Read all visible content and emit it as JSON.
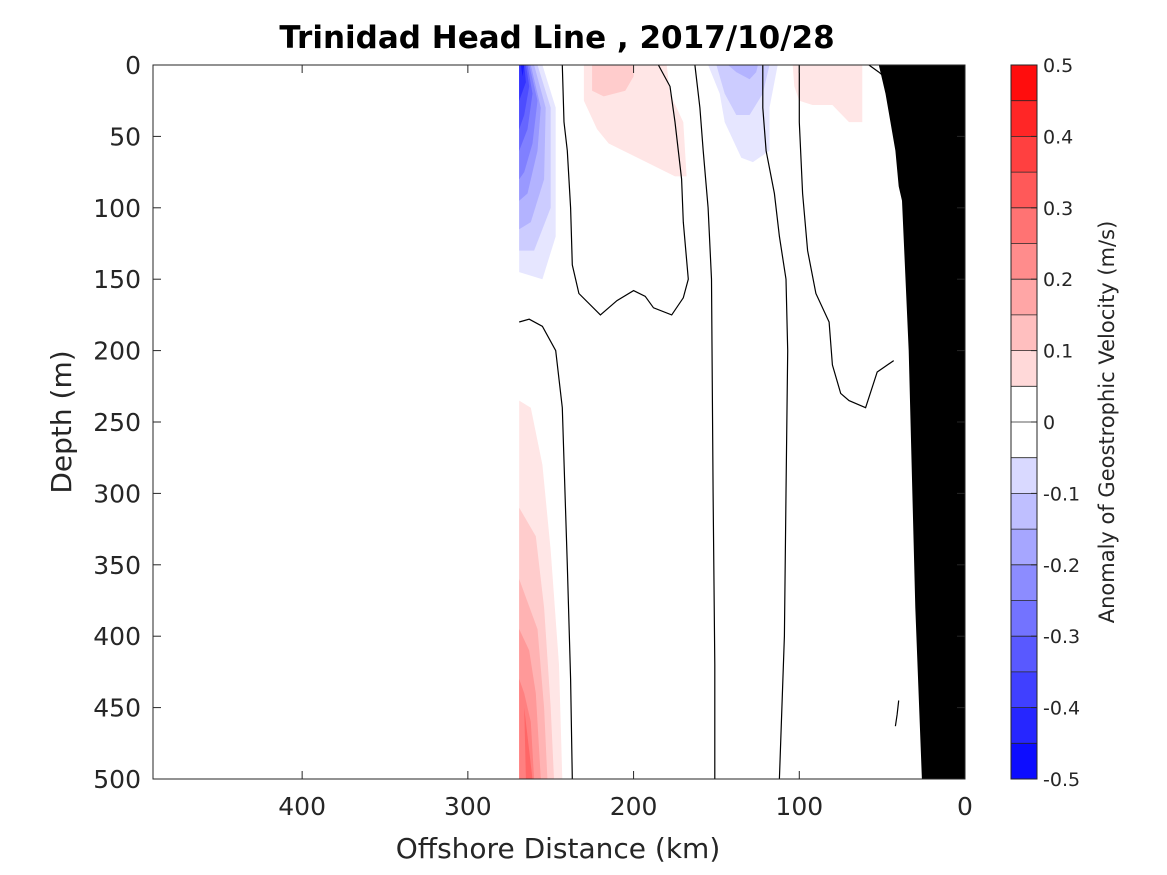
{
  "chart_data": {
    "type": "heatmap",
    "title": "Trinidad Head Line , 2017/10/28",
    "xlabel": "Offshore Distance (km)",
    "ylabel": "Depth (m)",
    "xlim": [
      490,
      0
    ],
    "ylim": [
      0,
      500
    ],
    "x_reversed": true,
    "y_reversed": true,
    "x_ticks": [
      400,
      300,
      200,
      100,
      0
    ],
    "x_tick_labels": [
      "400",
      "300",
      "200",
      "100",
      "0"
    ],
    "y_ticks": [
      0,
      50,
      100,
      150,
      200,
      250,
      300,
      350,
      400,
      450,
      500
    ],
    "y_tick_labels": [
      "0",
      "50",
      "100",
      "150",
      "200",
      "250",
      "300",
      "350",
      "400",
      "450",
      "500"
    ],
    "grid": false,
    "colorbar": {
      "label": "Anomaly of Geostrophic Velocity (m/s)",
      "range": [
        -0.5,
        0.5
      ],
      "levels": [
        -0.5,
        -0.45,
        -0.4,
        -0.35,
        -0.3,
        -0.25,
        -0.2,
        -0.15,
        -0.1,
        -0.05,
        0,
        0.05,
        0.1,
        0.15,
        0.2,
        0.25,
        0.3,
        0.35,
        0.4,
        0.45,
        0.5
      ],
      "tick_values": [
        0.5,
        0.4,
        0.3,
        0.2,
        0.1,
        0,
        -0.1,
        -0.2,
        -0.3,
        -0.4,
        -0.5
      ],
      "tick_labels": [
        "0.5",
        "0.4",
        "0.3",
        "0.2",
        "0.1",
        "0",
        "-0.1",
        "-0.2",
        "-0.3",
        "-0.4",
        "-0.5"
      ],
      "negative_color": "#0000ff",
      "positive_color": "#ff0000",
      "neutral_color": "#ffffff"
    },
    "bottom_color": "#000000",
    "bottom_profile": [
      [
        0,
        0
      ],
      [
        0,
        500
      ],
      [
        26,
        500
      ],
      [
        30,
        380
      ],
      [
        34,
        200
      ],
      [
        38,
        95
      ],
      [
        40,
        85
      ],
      [
        42,
        60
      ],
      [
        48,
        20
      ],
      [
        52,
        0
      ]
    ],
    "filled_regions": [
      {
        "value": -0.05,
        "points": [
          [
            269,
            0
          ],
          [
            255,
            0
          ],
          [
            247,
            30
          ],
          [
            247,
            120
          ],
          [
            255,
            150
          ],
          [
            269,
            145
          ]
        ]
      },
      {
        "value": -0.1,
        "points": [
          [
            269,
            0
          ],
          [
            258,
            0
          ],
          [
            250,
            30
          ],
          [
            250,
            100
          ],
          [
            260,
            130
          ],
          [
            269,
            130
          ]
        ]
      },
      {
        "value": -0.15,
        "points": [
          [
            269,
            0
          ],
          [
            260,
            0
          ],
          [
            253,
            30
          ],
          [
            254,
            80
          ],
          [
            262,
            110
          ],
          [
            269,
            115
          ]
        ]
      },
      {
        "value": -0.2,
        "points": [
          [
            269,
            0
          ],
          [
            262,
            0
          ],
          [
            256,
            30
          ],
          [
            258,
            60
          ],
          [
            264,
            90
          ],
          [
            269,
            95
          ]
        ]
      },
      {
        "value": -0.25,
        "points": [
          [
            269,
            0
          ],
          [
            263,
            0
          ],
          [
            258,
            25
          ],
          [
            261,
            55
          ],
          [
            266,
            75
          ],
          [
            269,
            80
          ]
        ]
      },
      {
        "value": -0.3,
        "points": [
          [
            269,
            0
          ],
          [
            264,
            0
          ],
          [
            261,
            20
          ],
          [
            264,
            45
          ],
          [
            269,
            60
          ]
        ]
      },
      {
        "value": -0.35,
        "points": [
          [
            269,
            0
          ],
          [
            265,
            0
          ],
          [
            263,
            15
          ],
          [
            266,
            35
          ],
          [
            269,
            45
          ]
        ]
      },
      {
        "value": -0.4,
        "points": [
          [
            269,
            0
          ],
          [
            266,
            0
          ],
          [
            265,
            12
          ],
          [
            269,
            25
          ]
        ]
      },
      {
        "value": -0.45,
        "points": [
          [
            268,
            0
          ],
          [
            266,
            0
          ],
          [
            267,
            8
          ]
        ]
      },
      {
        "value": 0.05,
        "points": [
          [
            230,
            0
          ],
          [
            230,
            25
          ],
          [
            222,
            45
          ],
          [
            215,
            55
          ],
          [
            175,
            78
          ],
          [
            168,
            78
          ],
          [
            170,
            40
          ],
          [
            178,
            20
          ],
          [
            180,
            0
          ]
        ]
      },
      {
        "value": 0.1,
        "points": [
          [
            225,
            0
          ],
          [
            225,
            18
          ],
          [
            218,
            22
          ],
          [
            205,
            18
          ],
          [
            200,
            8
          ],
          [
            200,
            0
          ]
        ]
      },
      {
        "value": -0.05,
        "points": [
          [
            155,
            0
          ],
          [
            148,
            20
          ],
          [
            145,
            40
          ],
          [
            135,
            65
          ],
          [
            128,
            68
          ],
          [
            118,
            60
          ],
          [
            118,
            30
          ],
          [
            113,
            0
          ]
        ]
      },
      {
        "value": -0.1,
        "points": [
          [
            150,
            0
          ],
          [
            145,
            20
          ],
          [
            138,
            35
          ],
          [
            130,
            35
          ],
          [
            122,
            20
          ],
          [
            118,
            0
          ]
        ]
      },
      {
        "value": -0.15,
        "points": [
          [
            143,
            0
          ],
          [
            138,
            5
          ],
          [
            130,
            10
          ],
          [
            126,
            5
          ],
          [
            125,
            0
          ]
        ]
      },
      {
        "value": 0.05,
        "points": [
          [
            104,
            0
          ],
          [
            103,
            15
          ],
          [
            100,
            25
          ],
          [
            92,
            28
          ],
          [
            80,
            28
          ],
          [
            70,
            40
          ],
          [
            62,
            40
          ],
          [
            62,
            0
          ]
        ]
      },
      {
        "value": 0.05,
        "points": [
          [
            269,
            235
          ],
          [
            269,
            500
          ],
          [
            243,
            500
          ],
          [
            245,
            420
          ],
          [
            250,
            340
          ],
          [
            255,
            280
          ],
          [
            262,
            240
          ]
        ]
      },
      {
        "value": 0.1,
        "points": [
          [
            269,
            310
          ],
          [
            269,
            500
          ],
          [
            248,
            500
          ],
          [
            250,
            450
          ],
          [
            254,
            380
          ],
          [
            259,
            330
          ]
        ]
      },
      {
        "value": 0.15,
        "points": [
          [
            269,
            360
          ],
          [
            269,
            500
          ],
          [
            252,
            500
          ],
          [
            254,
            450
          ],
          [
            258,
            395
          ]
        ]
      },
      {
        "value": 0.2,
        "points": [
          [
            269,
            395
          ],
          [
            269,
            500
          ],
          [
            256,
            500
          ],
          [
            259,
            440
          ],
          [
            263,
            410
          ]
        ]
      },
      {
        "value": 0.25,
        "points": [
          [
            269,
            430
          ],
          [
            269,
            500
          ],
          [
            260,
            500
          ],
          [
            262,
            460
          ],
          [
            266,
            440
          ]
        ]
      },
      {
        "value": 0.3,
        "points": [
          [
            266,
            450
          ],
          [
            265,
            500
          ],
          [
            261,
            500
          ]
        ]
      }
    ],
    "contour_lines": [
      {
        "value": 0,
        "points": [
          [
            243,
            0
          ],
          [
            242,
            40
          ],
          [
            240,
            60
          ],
          [
            238,
            100
          ],
          [
            237,
            140
          ],
          [
            233,
            160
          ],
          [
            220,
            175
          ],
          [
            210,
            165
          ],
          [
            200,
            158
          ],
          [
            193,
            162
          ],
          [
            188,
            170
          ],
          [
            177,
            175
          ],
          [
            170,
            163
          ],
          [
            167,
            150
          ],
          [
            170,
            110
          ],
          [
            171,
            80
          ],
          [
            175,
            40
          ],
          [
            178,
            15
          ],
          [
            185,
            0
          ]
        ]
      },
      {
        "value": 0,
        "points": [
          [
            269,
            180
          ],
          [
            263,
            178
          ],
          [
            255,
            183
          ],
          [
            247,
            200
          ],
          [
            243,
            240
          ],
          [
            240,
            350
          ],
          [
            238,
            430
          ],
          [
            237,
            500
          ]
        ]
      },
      {
        "value": 0,
        "points": [
          [
            163,
            0
          ],
          [
            160,
            30
          ],
          [
            158,
            60
          ],
          [
            155,
            100
          ],
          [
            153,
            150
          ],
          [
            152,
            300
          ],
          [
            151,
            420
          ],
          [
            151,
            500
          ]
        ]
      },
      {
        "value": 0,
        "points": [
          [
            122,
            0
          ],
          [
            122,
            30
          ],
          [
            120,
            60
          ],
          [
            115,
            90
          ],
          [
            112,
            120
          ],
          [
            108,
            150
          ],
          [
            107,
            200
          ],
          [
            108,
            300
          ],
          [
            109,
            400
          ],
          [
            112,
            500
          ]
        ]
      },
      {
        "value": 0,
        "points": [
          [
            100,
            0
          ],
          [
            100,
            40
          ],
          [
            98,
            90
          ],
          [
            95,
            130
          ],
          [
            90,
            160
          ],
          [
            82,
            180
          ],
          [
            80,
            210
          ],
          [
            75,
            230
          ],
          [
            70,
            235
          ],
          [
            60,
            240
          ],
          [
            53,
            215
          ],
          [
            43,
            207
          ]
        ]
      },
      {
        "value": 0,
        "points": [
          [
            58,
            0
          ],
          [
            52,
            5
          ],
          [
            45,
            12
          ],
          [
            40,
            20
          ]
        ]
      },
      {
        "value": 0,
        "points": [
          [
            35,
            45
          ],
          [
            33,
            60
          ],
          [
            32,
            80
          ]
        ]
      },
      {
        "value": 0,
        "points": [
          [
            31,
            130
          ],
          [
            32,
            150
          ],
          [
            33,
            170
          ],
          [
            33,
            183
          ]
        ]
      },
      {
        "value": 0,
        "points": [
          [
            40,
            445
          ],
          [
            41,
            455
          ],
          [
            42,
            463
          ]
        ]
      }
    ]
  }
}
